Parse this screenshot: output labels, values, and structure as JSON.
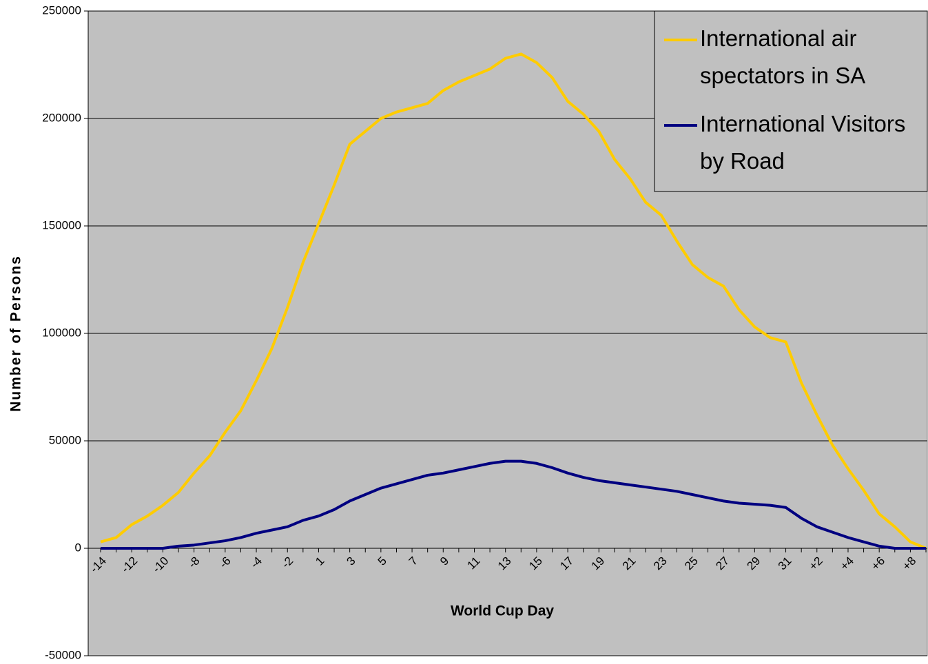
{
  "chart_data": {
    "type": "line",
    "x_label": "World Cup Day",
    "y_label": "Number of Persons",
    "categories": [
      "-14",
      null,
      "-12",
      null,
      "-10",
      null,
      "-8",
      null,
      "-6",
      null,
      "-4",
      null,
      "-2",
      null,
      "1",
      null,
      "3",
      null,
      "5",
      null,
      "7",
      null,
      "9",
      null,
      "11",
      null,
      "13",
      null,
      "15",
      null,
      "17",
      null,
      "19",
      null,
      "21",
      null,
      "23",
      null,
      "25",
      null,
      "27",
      null,
      "29",
      null,
      "31",
      null,
      "+2",
      null,
      "+4",
      null,
      "+6",
      null,
      "+8",
      null
    ],
    "series": [
      {
        "name": "International air spectators in SA",
        "color": "#ffcc00",
        "values": [
          3000,
          5000,
          11000,
          15000,
          20000,
          26000,
          35000,
          43000,
          54000,
          64000,
          78000,
          93000,
          112000,
          133000,
          151000,
          169000,
          188000,
          194000,
          200000,
          203000,
          205000,
          207000,
          213000,
          217000,
          220000,
          223000,
          228000,
          230000,
          226000,
          219000,
          208000,
          202000,
          194000,
          181000,
          172000,
          161000,
          155000,
          143000,
          132000,
          126000,
          122000,
          111000,
          103000,
          98000,
          96000,
          77000,
          62000,
          48000,
          37000,
          27000,
          16000,
          10000,
          3000,
          0
        ]
      },
      {
        "name": "International Visitors by  Road",
        "color": "#000080",
        "values": [
          0,
          0,
          0,
          0,
          0,
          1000,
          1500,
          2500,
          3500,
          5000,
          7000,
          8500,
          10000,
          13000,
          15000,
          18000,
          22000,
          25000,
          28000,
          30000,
          32000,
          34000,
          35000,
          36500,
          38000,
          39500,
          40500,
          40500,
          39500,
          37500,
          35000,
          33000,
          31500,
          30500,
          29500,
          28500,
          27500,
          26500,
          25000,
          23500,
          22000,
          21000,
          20500,
          20000,
          19000,
          14000,
          10000,
          7500,
          5000,
          3000,
          1000,
          0,
          0,
          0
        ]
      }
    ],
    "ylim": [
      -50000,
      250000
    ],
    "yticks": [
      -50000,
      0,
      50000,
      100000,
      150000,
      200000,
      250000
    ],
    "grid": true,
    "legend": "top-right"
  }
}
